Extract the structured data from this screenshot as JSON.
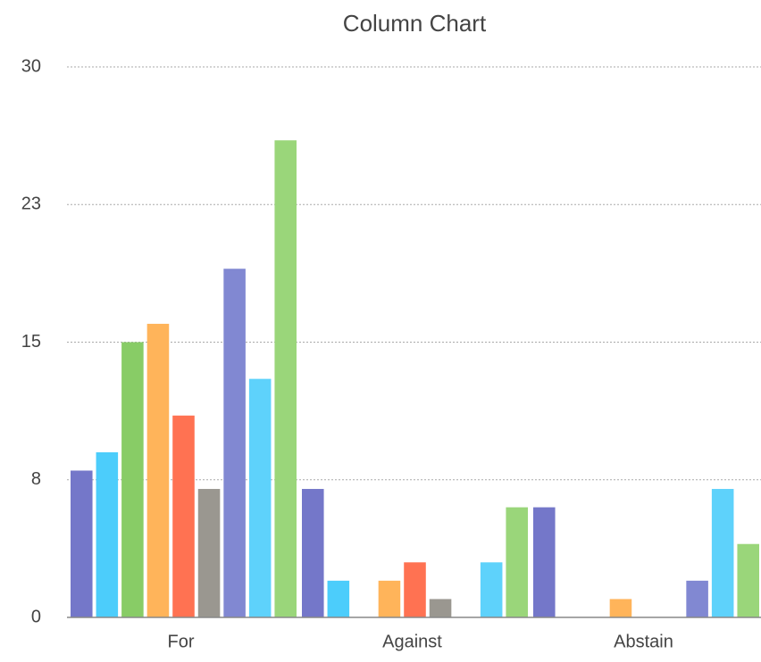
{
  "chart_data": {
    "type": "bar",
    "title": "Column Chart",
    "categories": [
      "For",
      "Against",
      "Abstain"
    ],
    "series": [
      {
        "color": "#7477c9",
        "values": [
          8,
          7,
          6
        ]
      },
      {
        "color": "#4ccdfb",
        "values": [
          9,
          2,
          0
        ]
      },
      {
        "color": "#88cc66",
        "values": [
          15,
          0,
          0
        ]
      },
      {
        "color": "#ffb45a",
        "values": [
          16,
          2,
          1
        ]
      },
      {
        "color": "#ff7252",
        "values": [
          11,
          3,
          0
        ]
      },
      {
        "color": "#9a9790",
        "values": [
          7,
          1,
          0
        ]
      },
      {
        "color": "#8188d2",
        "values": [
          19,
          0,
          2
        ]
      },
      {
        "color": "#5ed2fb",
        "values": [
          13,
          3,
          7
        ]
      },
      {
        "color": "#9ad67a",
        "values": [
          26,
          6,
          4
        ]
      }
    ],
    "ylim": [
      0,
      30
    ],
    "yticks": [
      0,
      {
        "value": 7.5,
        "label": "8"
      },
      15,
      {
        "value": 22.5,
        "label": "23"
      },
      30
    ],
    "grid": true
  }
}
